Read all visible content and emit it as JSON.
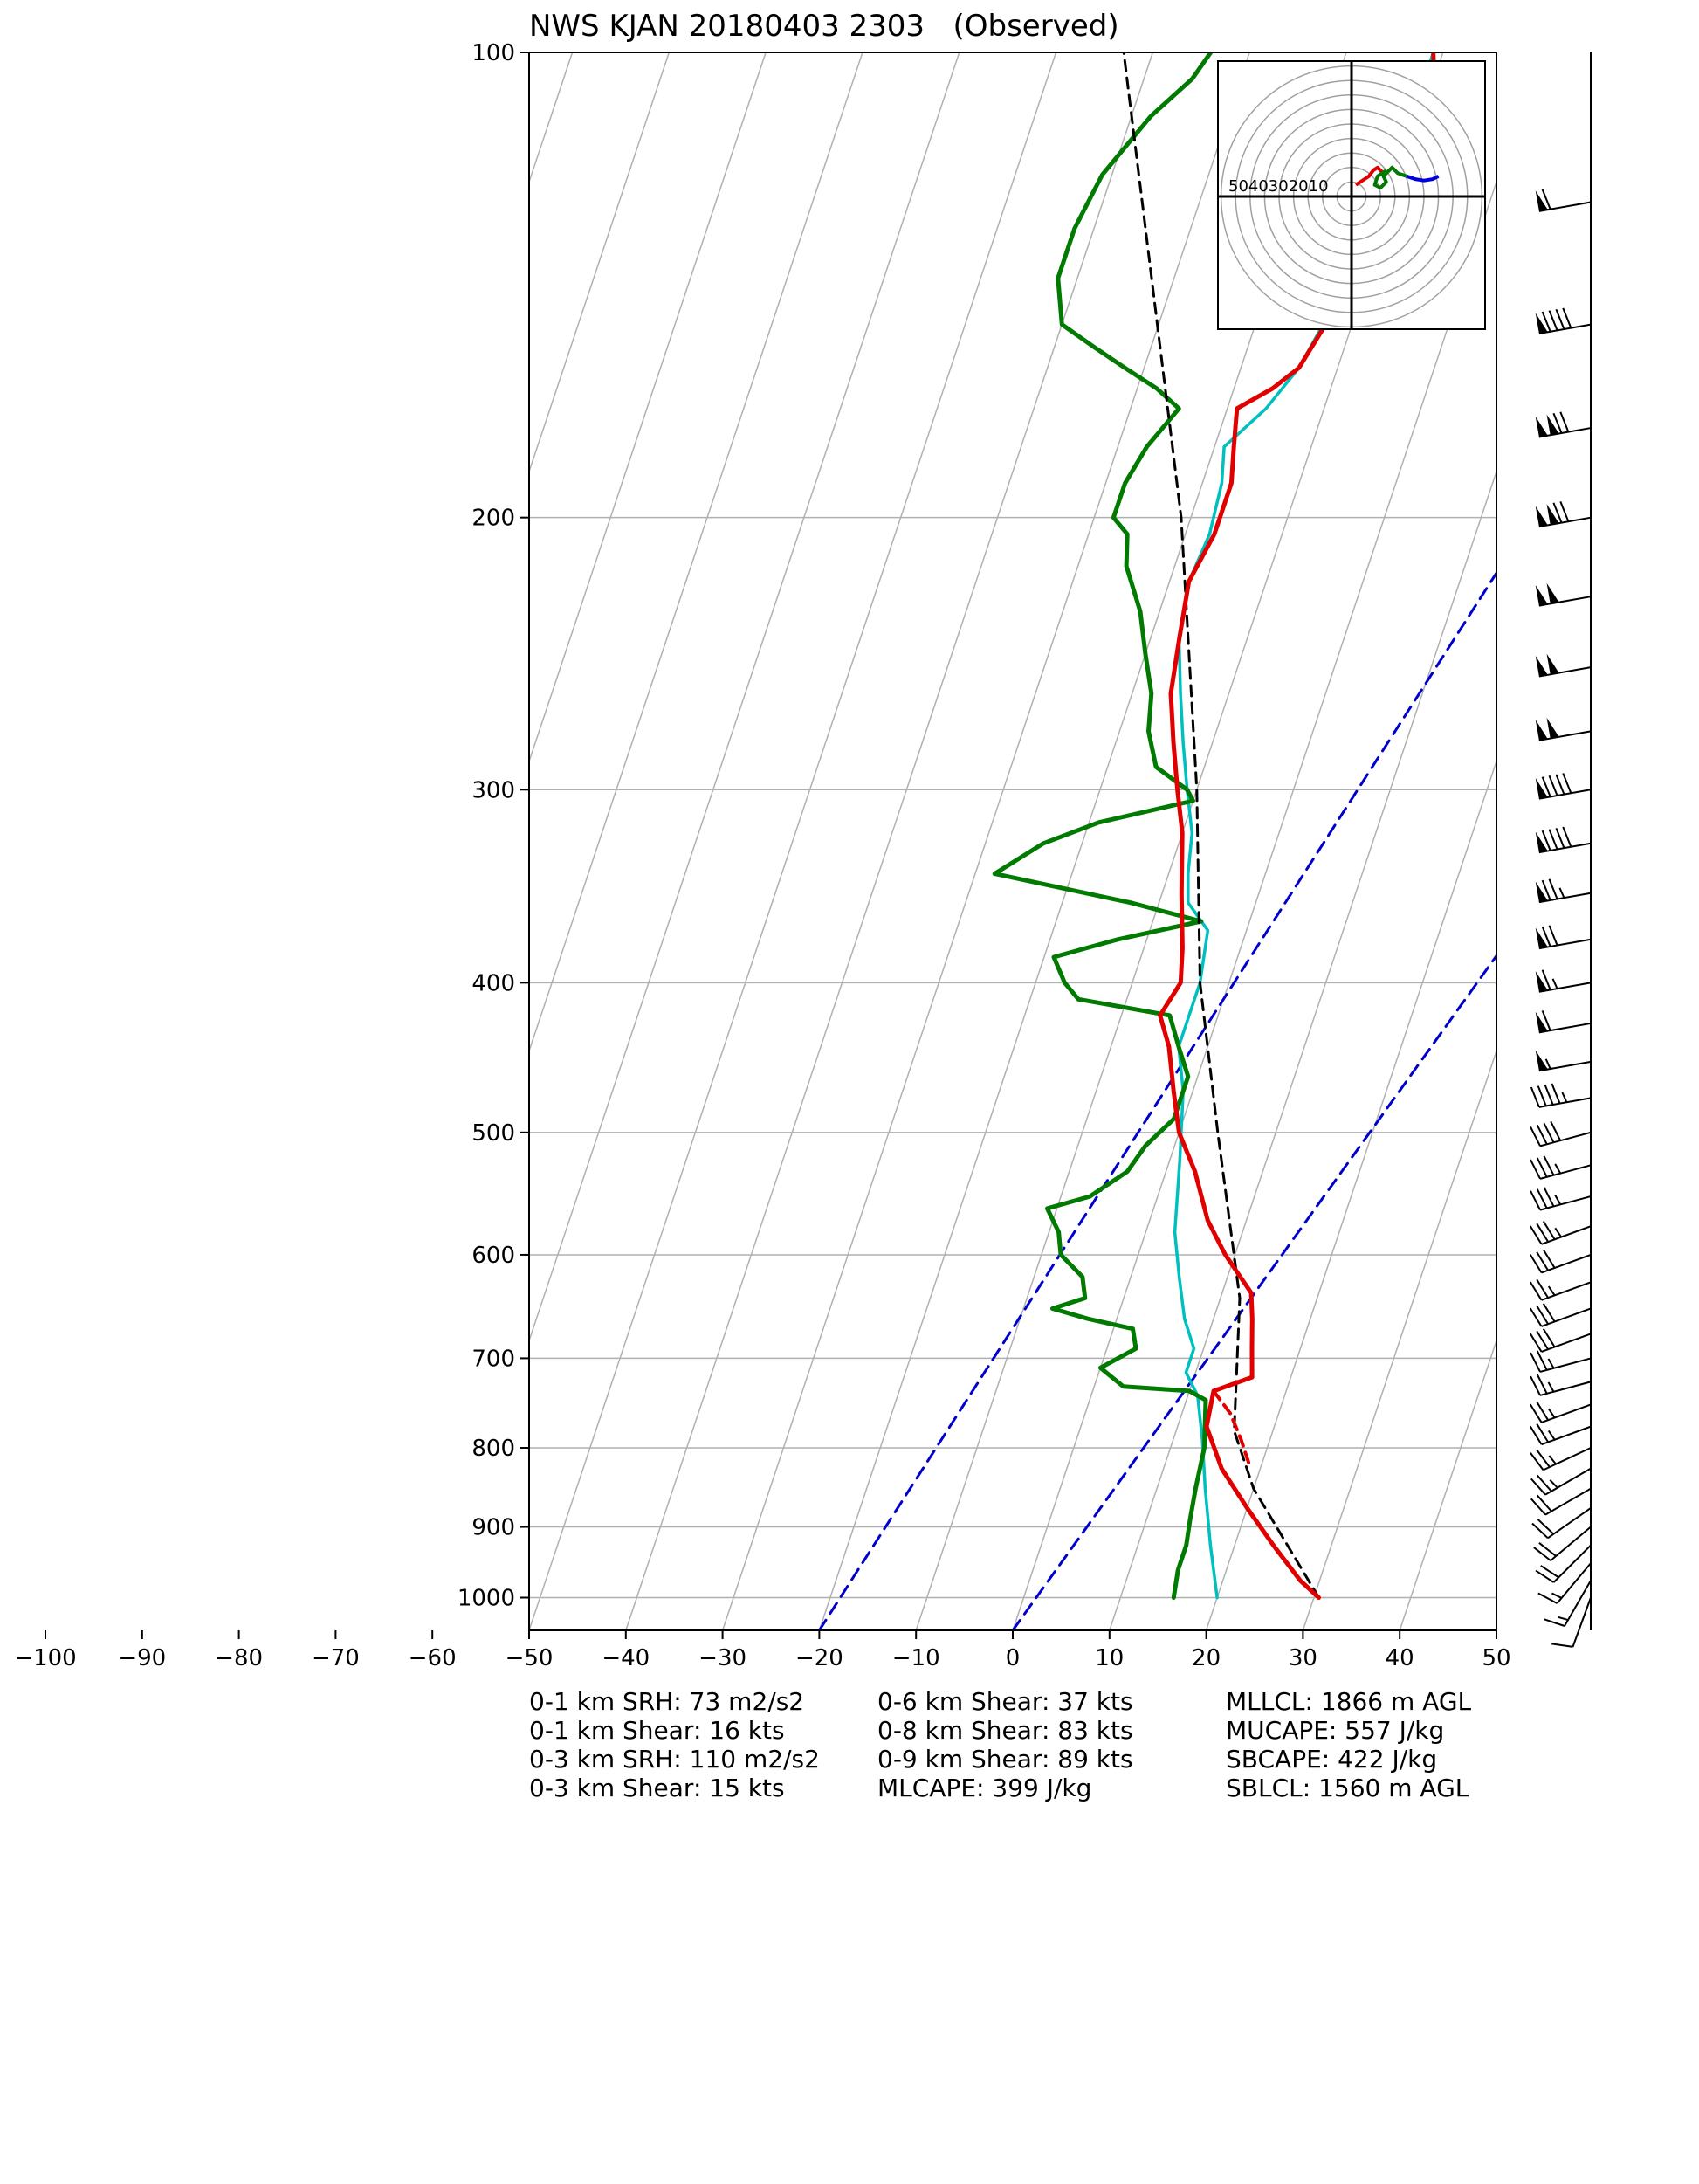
{
  "title": "NWS KJAN 20180403 2303   (Observed)",
  "chart_data": {
    "type": "skew-t",
    "title": "NWS KJAN 20180403 2303   (Observed)",
    "xlabel": "",
    "ylabel": "",
    "temperature_ticks": [
      -100,
      -90,
      -80,
      -70,
      -60,
      -50,
      -40,
      -30,
      -20,
      -10,
      0,
      10,
      20,
      30,
      40,
      50
    ],
    "pressure_ticks": [
      1000,
      900,
      800,
      700,
      600,
      500,
      400,
      300,
      200,
      100
    ],
    "xlim": [
      -50,
      50
    ],
    "ylim_hpa": [
      1050,
      100
    ],
    "y_scale": "log",
    "grid": true,
    "colors": {
      "temperature": "#e00000",
      "virtual_temperature": "#e00000",
      "dewpoint": "#007a00",
      "wetbulb": "#00bfbf",
      "parcel": "#000000",
      "dry_adiabat": "#0000cc",
      "hodograph_low": "#e00000",
      "hodograph_mid": "#007a00",
      "hodograph_high": "#0000dd"
    },
    "series": [
      {
        "name": "",
        "kind": "temperature",
        "points": [
          [
            30.5,
            1000
          ],
          [
            28,
            975
          ],
          [
            24,
            925
          ],
          [
            20,
            875
          ],
          [
            16,
            825
          ],
          [
            13,
            775
          ],
          [
            12.5,
            735
          ],
          [
            16,
            720
          ],
          [
            15,
            690
          ],
          [
            14,
            660
          ],
          [
            13,
            635
          ],
          [
            9,
            600
          ],
          [
            6,
            570
          ],
          [
            3,
            530
          ],
          [
            0,
            500
          ],
          [
            -2,
            470
          ],
          [
            -4,
            440
          ],
          [
            -6,
            420
          ],
          [
            -5,
            400
          ],
          [
            -6,
            380
          ],
          [
            -8,
            350
          ],
          [
            -10,
            320
          ],
          [
            -12,
            300
          ],
          [
            -14,
            280
          ],
          [
            -16,
            260
          ],
          [
            -17,
            240
          ],
          [
            -18,
            220
          ],
          [
            -17,
            205
          ],
          [
            -17,
            190
          ],
          [
            -18,
            180
          ],
          [
            -19,
            170
          ],
          [
            -16,
            165
          ],
          [
            -14,
            160
          ],
          [
            -13,
            152
          ],
          [
            -12,
            145
          ],
          [
            -11,
            135
          ],
          [
            -11,
            125
          ],
          [
            -12,
            115
          ],
          [
            -14,
            108
          ],
          [
            -10,
            104
          ],
          [
            -11,
            100
          ]
        ]
      },
      {
        "name": "",
        "kind": "virtual_temperature",
        "points": [
          [
            12.5,
            735
          ],
          [
            15,
            760
          ],
          [
            17,
            790
          ],
          [
            19,
            825
          ]
        ]
      },
      {
        "name": "",
        "kind": "dewpoint",
        "points": [
          [
            15.5,
            1000
          ],
          [
            15,
            960
          ],
          [
            15,
            925
          ],
          [
            14.5,
            890
          ],
          [
            14,
            850
          ],
          [
            13.5,
            800
          ],
          [
            12,
            745
          ],
          [
            10,
            735
          ],
          [
            3,
            730
          ],
          [
            0,
            710
          ],
          [
            3,
            690
          ],
          [
            2,
            670
          ],
          [
            -3,
            660
          ],
          [
            -7,
            650
          ],
          [
            -4,
            640
          ],
          [
            -5,
            620
          ],
          [
            -8,
            600
          ],
          [
            -9,
            580
          ],
          [
            -11,
            560
          ],
          [
            -7,
            550
          ],
          [
            -4,
            530
          ],
          [
            -3,
            510
          ],
          [
            -1,
            490
          ],
          [
            -1,
            460
          ],
          [
            -3,
            440
          ],
          [
            -5,
            420
          ],
          [
            -15,
            410
          ],
          [
            -17,
            400
          ],
          [
            -19,
            385
          ],
          [
            -13,
            375
          ],
          [
            -5,
            365
          ],
          [
            -13,
            355
          ],
          [
            -28,
            340
          ],
          [
            -24,
            325
          ],
          [
            -19,
            315
          ],
          [
            -10,
            305
          ],
          [
            -11,
            300
          ],
          [
            -15,
            290
          ],
          [
            -17,
            275
          ],
          [
            -18,
            260
          ],
          [
            -20,
            245
          ],
          [
            -22,
            230
          ],
          [
            -25,
            215
          ],
          [
            -26,
            205
          ],
          [
            -28,
            200
          ],
          [
            -28,
            190
          ],
          [
            -27,
            180
          ],
          [
            -25,
            170
          ],
          [
            -28,
            165
          ],
          [
            -32,
            160
          ],
          [
            -36,
            155
          ],
          [
            -40,
            150
          ],
          [
            -42,
            140
          ],
          [
            -42,
            130
          ],
          [
            -41,
            120
          ],
          [
            -38,
            110
          ],
          [
            -35,
            104
          ],
          [
            -34,
            100
          ]
        ]
      },
      {
        "name": "",
        "kind": "wetbulb",
        "points": [
          [
            20,
            1000
          ],
          [
            17.5,
            925
          ],
          [
            15,
            850
          ],
          [
            13,
            790
          ],
          [
            11,
            740
          ],
          [
            9,
            715
          ],
          [
            9,
            690
          ],
          [
            7,
            660
          ],
          [
            5,
            620
          ],
          [
            3,
            580
          ],
          [
            1,
            520
          ],
          [
            -1,
            470
          ],
          [
            -3,
            440
          ],
          [
            -3,
            400
          ],
          [
            -4,
            370
          ],
          [
            -7,
            355
          ],
          [
            -8,
            340
          ],
          [
            -9,
            320
          ],
          [
            -11,
            300
          ],
          [
            -13,
            280
          ],
          [
            -15,
            260
          ],
          [
            -17,
            240
          ],
          [
            -18,
            220
          ],
          [
            -17.5,
            205
          ],
          [
            -18,
            190
          ],
          [
            -19,
            180
          ],
          [
            -16,
            170
          ],
          [
            -14,
            160
          ],
          [
            -13,
            150
          ],
          [
            -12,
            140
          ],
          [
            -11,
            130
          ],
          [
            -12,
            120
          ],
          [
            -14,
            110
          ],
          [
            -11,
            104
          ],
          [
            -11,
            100
          ]
        ]
      },
      {
        "name": "",
        "kind": "parcel",
        "points": [
          [
            30.5,
            1000
          ],
          [
            20,
            850
          ],
          [
            16,
            780
          ],
          [
            12,
            640
          ],
          [
            4,
            500
          ],
          [
            -3,
            400
          ],
          [
            -10,
            300
          ],
          [
            -21,
            200
          ],
          [
            -43,
            100
          ]
        ]
      },
      {
        "name": "",
        "kind": "dry_adiabat",
        "points": [
          [
            -20,
            1050
          ],
          [
            30,
            100
          ]
        ]
      },
      {
        "name": "",
        "kind": "dry_adiabat",
        "points": [
          [
            0,
            1050
          ],
          [
            50,
            160
          ]
        ]
      }
    ],
    "hodograph": {
      "ring_labels": [
        "50",
        "40",
        "30",
        "20",
        "10"
      ],
      "ring_values": [
        50,
        40,
        30,
        20,
        10
      ]
    },
    "wind_barbs": [
      {
        "p": 1000,
        "dir": 200,
        "kts": 10
      },
      {
        "p": 975,
        "dir": 210,
        "kts": 15
      },
      {
        "p": 950,
        "dir": 220,
        "kts": 15
      },
      {
        "p": 925,
        "dir": 225,
        "kts": 20
      },
      {
        "p": 900,
        "dir": 230,
        "kts": 20
      },
      {
        "p": 875,
        "dir": 235,
        "kts": 20
      },
      {
        "p": 850,
        "dir": 240,
        "kts": 20
      },
      {
        "p": 825,
        "dir": 240,
        "kts": 25
      },
      {
        "p": 800,
        "dir": 245,
        "kts": 25
      },
      {
        "p": 775,
        "dir": 250,
        "kts": 25
      },
      {
        "p": 750,
        "dir": 250,
        "kts": 25
      },
      {
        "p": 725,
        "dir": 255,
        "kts": 25
      },
      {
        "p": 700,
        "dir": 255,
        "kts": 25
      },
      {
        "p": 675,
        "dir": 250,
        "kts": 30
      },
      {
        "p": 650,
        "dir": 250,
        "kts": 30
      },
      {
        "p": 625,
        "dir": 250,
        "kts": 25
      },
      {
        "p": 600,
        "dir": 250,
        "kts": 30
      },
      {
        "p": 575,
        "dir": 250,
        "kts": 35
      },
      {
        "p": 550,
        "dir": 255,
        "kts": 35
      },
      {
        "p": 525,
        "dir": 255,
        "kts": 35
      },
      {
        "p": 500,
        "dir": 255,
        "kts": 40
      },
      {
        "p": 475,
        "dir": 260,
        "kts": 45
      },
      {
        "p": 450,
        "dir": 260,
        "kts": 55
      },
      {
        "p": 425,
        "dir": 260,
        "kts": 60
      },
      {
        "p": 400,
        "dir": 260,
        "kts": 65
      },
      {
        "p": 375,
        "dir": 260,
        "kts": 70
      },
      {
        "p": 350,
        "dir": 260,
        "kts": 75
      },
      {
        "p": 325,
        "dir": 260,
        "kts": 90
      },
      {
        "p": 300,
        "dir": 260,
        "kts": 90
      },
      {
        "p": 275,
        "dir": 260,
        "kts": 100
      },
      {
        "p": 250,
        "dir": 260,
        "kts": 100
      },
      {
        "p": 225,
        "dir": 260,
        "kts": 100
      },
      {
        "p": 200,
        "dir": 260,
        "kts": 120
      },
      {
        "p": 175,
        "dir": 260,
        "kts": 120
      },
      {
        "p": 150,
        "dir": 260,
        "kts": 90
      },
      {
        "p": 125,
        "dir": 260,
        "kts": 60
      }
    ]
  },
  "stats": {
    "col1": [
      "0-1 km SRH: 73 m2/s2",
      "0-1 km Shear: 16 kts",
      "0-3 km SRH: 110 m2/s2",
      "0-3 km Shear: 15 kts"
    ],
    "col2": [
      "0-6 km Shear: 37 kts",
      "0-8 km Shear: 83 kts",
      "0-9 km Shear: 89 kts",
      "MLCAPE: 399 J/kg"
    ],
    "col3": [
      "MLLCL: 1866 m AGL",
      "MUCAPE: 557 J/kg",
      "SBCAPE: 422 J/kg",
      "SBLCL: 1560 m AGL"
    ]
  }
}
